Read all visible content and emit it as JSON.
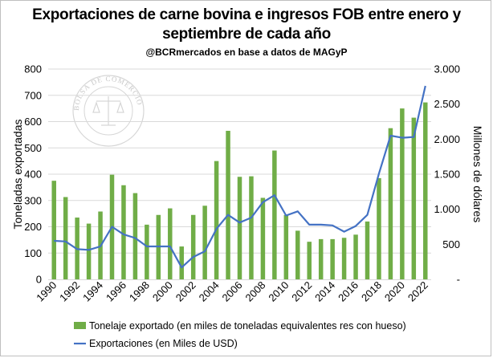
{
  "chart_data": {
    "type": "bar+line",
    "title": "Exportaciones de carne bovina e ingresos FOB entre enero y septiembre de cada año",
    "title_line1": "Exportaciones de carne bovina e ingresos FOB entre enero y",
    "title_line2": "septiembre de cada año",
    "subtitle": "@BCRmercados en base a datos de MAGyP",
    "watermark_text": "BOLSA DE COMERCIO DE ROSARIO",
    "x": [
      1990,
      1991,
      1992,
      1993,
      1994,
      1995,
      1996,
      1997,
      1998,
      1999,
      2000,
      2001,
      2002,
      2003,
      2004,
      2005,
      2006,
      2007,
      2008,
      2009,
      2010,
      2011,
      2012,
      2013,
      2014,
      2015,
      2016,
      2017,
      2018,
      2019,
      2020,
      2021,
      2022
    ],
    "x_tick_labels": [
      "1990",
      "1992",
      "1994",
      "1996",
      "1998",
      "2000",
      "2002",
      "2004",
      "2006",
      "2008",
      "2010",
      "2012",
      "2014",
      "2016",
      "2018",
      "2020",
      "2022"
    ],
    "ylabel_left": "Toneladas exportadas",
    "ylabel_right": "Millones de dólares",
    "ylim_left": [
      0,
      800
    ],
    "ylim_right": [
      0,
      3000
    ],
    "yticks_left": [
      "0",
      "100",
      "200",
      "300",
      "400",
      "500",
      "600",
      "700",
      "800"
    ],
    "yticks_right": [
      "-",
      "500",
      "1.000",
      "1.500",
      "2.000",
      "2.500",
      "3.000"
    ],
    "grid": true,
    "legend_position": "bottom",
    "series": [
      {
        "name": "Tonelaje exportado (en miles de toneladas equivalentes res con hueso)",
        "type": "bar",
        "axis": "left",
        "color": "#70ad47",
        "values": [
          375,
          313,
          235,
          212,
          258,
          398,
          358,
          328,
          208,
          245,
          270,
          125,
          245,
          280,
          450,
          565,
          390,
          392,
          310,
          490,
          245,
          185,
          143,
          153,
          153,
          158,
          170,
          220,
          385,
          575,
          650,
          615,
          673
        ]
      },
      {
        "name": "Exportaciones (en Miles de USD)",
        "type": "line",
        "axis": "right",
        "color": "#4472c4",
        "values": [
          550,
          540,
          430,
          420,
          470,
          750,
          640,
          590,
          470,
          470,
          470,
          170,
          320,
          400,
          720,
          920,
          810,
          880,
          1100,
          1200,
          910,
          970,
          780,
          780,
          770,
          680,
          760,
          920,
          1510,
          2050,
          2020,
          2030,
          2760
        ]
      }
    ]
  }
}
